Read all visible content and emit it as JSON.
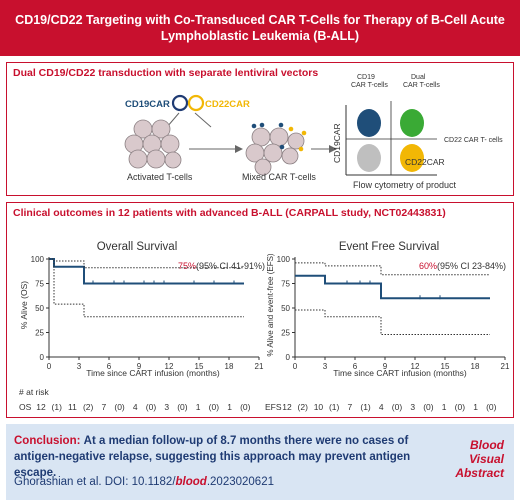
{
  "title": "CD19/CD22 Targeting with Co-Transduced CAR T-Cells for Therapy of B-Cell Acute Lymphoblastic Leukemia (B-ALL)",
  "panel1": {
    "title": "Dual CD19/CD22 transduction with separate lentiviral vectors",
    "cd19car_label": "CD19CAR",
    "cd22car_label": "CD22CAR",
    "activated_label": "Activated T-cells",
    "mixed_label": "Mixed CAR T-cells",
    "flow": {
      "q_cd19_label": "CD19 CAR T-cells",
      "q_dual_label": "Dual CAR T-cells",
      "q_cd22_label": "CD22 CAR T- cells",
      "y_axis": "CD19CAR",
      "x_axis": "CD22CAR",
      "caption": "Flow cytometry of product"
    }
  },
  "panel2": {
    "title": "Clinical outcomes in 12 patients with advanced B-ALL (CARPALL study, NCT02443831)",
    "os": {
      "title": "Overall Survival",
      "annotation_pct": "75%",
      "annotation_ci": "(95% CI 41-91%)",
      "ylabel": "% Alive (OS)",
      "xlabel": "Time since CART infusion (months)",
      "risk_label": "OS",
      "risk_values": [
        "12",
        "(1)",
        "11",
        "(2)",
        "7",
        "(0)",
        "4",
        "(0)",
        "3",
        "(0)",
        "1",
        "(0)",
        "1",
        "(0)"
      ]
    },
    "efs": {
      "title": "Event Free Survival",
      "annotation_pct": "60%",
      "annotation_ci": "(95% CI 23-84%)",
      "ylabel": "% Alive and event-free (EFS)",
      "xlabel": "Time since CART infusion (months)",
      "risk_label": "EFS",
      "risk_values": [
        "12",
        "(2)",
        "10",
        "(1)",
        "7",
        "(1)",
        "4",
        "(0)",
        "3",
        "(0)",
        "1",
        "(0)",
        "1",
        "(0)"
      ]
    },
    "risk_header": "# at risk"
  },
  "conclusion": {
    "label": "Conclusion:",
    "text": "At a median follow-up of 8.7 months there were no cases of antigen-negative relapse, suggesting this approach may prevent antigen escape.",
    "citation_prefix": "Ghorashian et al. DOI: 10.1182/",
    "citation_blood": "blood",
    "citation_suffix": ".2023020621",
    "abstract_line1": "Blood",
    "abstract_line2": "Visual",
    "abstract_line3": "Abstract"
  },
  "chart_data": [
    {
      "type": "line",
      "title": "Overall Survival",
      "xlabel": "Time since CART infusion (months)",
      "ylabel": "% Alive (OS)",
      "xlim": [
        0,
        21
      ],
      "ylim": [
        0,
        100
      ],
      "x_ticks": [
        0,
        3,
        6,
        9,
        12,
        15,
        18,
        21
      ],
      "y_ticks": [
        0,
        25,
        50,
        75,
        100
      ],
      "series": [
        {
          "x": [
            0,
            0.5,
            0.5,
            3.5,
            3.5,
            19.5
          ],
          "y": [
            100,
            100,
            92,
            92,
            75,
            75
          ]
        },
        {
          "x": [
            0,
            0.5,
            0.5,
            3.5,
            3.5,
            19.5
          ],
          "y": [
            100,
            100,
            98,
            98,
            91,
            91
          ]
        },
        {
          "x": [
            0,
            0.5,
            0.5,
            3.5,
            3.5,
            19.5
          ],
          "y": [
            100,
            100,
            54,
            54,
            41,
            41
          ]
        }
      ],
      "censor_x": [
        4.4,
        6.5,
        7.5,
        9.5,
        10.5,
        11.5,
        14.5,
        16.5,
        18.5
      ]
    },
    {
      "type": "line",
      "title": "Event Free Survival",
      "xlabel": "Time since CART infusion (months)",
      "ylabel": "% Alive and event-free (EFS)",
      "xlim": [
        0,
        21
      ],
      "ylim": [
        0,
        100
      ],
      "x_ticks": [
        0,
        3,
        6,
        9,
        12,
        15,
        18,
        21
      ],
      "y_ticks": [
        0,
        25,
        50,
        75,
        100
      ],
      "series": [
        {
          "x": [
            0,
            3,
            3,
            8.6,
            8.6,
            19.5
          ],
          "y": [
            83,
            83,
            75,
            75,
            60,
            60
          ]
        },
        {
          "x": [
            0,
            3,
            3,
            8.6,
            8.6,
            19.5
          ],
          "y": [
            96,
            96,
            93,
            93,
            84,
            84
          ]
        },
        {
          "x": [
            0,
            3,
            3,
            8.6,
            8.6,
            19.5
          ],
          "y": [
            48,
            48,
            41,
            41,
            23,
            23
          ]
        }
      ],
      "censor_x": [
        5.2,
        6.5,
        7.5,
        12.5,
        14.5
      ]
    }
  ],
  "colors": {
    "red": "#c8102e",
    "navy": "#1f4e79",
    "green": "#3aaa35",
    "yellow": "#f2b705",
    "gray": "#bfbfbf",
    "cell": "#d9c9cc"
  }
}
